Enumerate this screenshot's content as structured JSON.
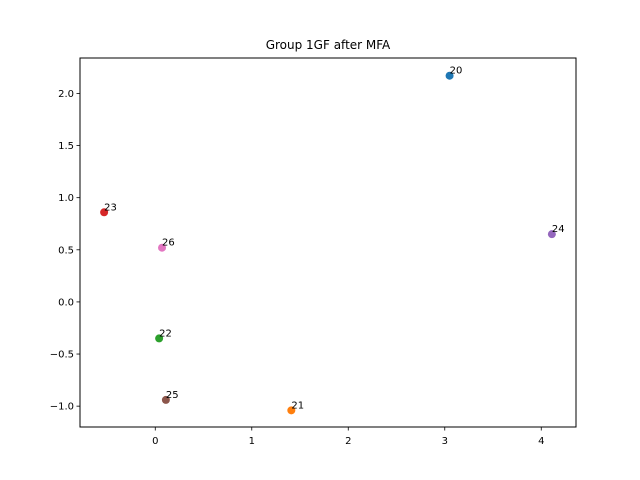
{
  "chart_data": {
    "type": "scatter",
    "title": "Group 1GF after MFA",
    "xlabel": "",
    "ylabel": "",
    "xlim": [
      -0.78,
      4.36
    ],
    "ylim": [
      -1.2,
      2.34
    ],
    "x_ticks": [
      0,
      1,
      2,
      3,
      4
    ],
    "x_tick_labels": [
      "0",
      "1",
      "2",
      "3",
      "4"
    ],
    "y_ticks": [
      -1.0,
      -0.5,
      0.0,
      0.5,
      1.0,
      1.5,
      2.0
    ],
    "y_tick_labels": [
      "−1.0",
      "−0.5",
      "0.0",
      "0.5",
      "1.0",
      "1.5",
      "2.0"
    ],
    "grid": false,
    "points": [
      {
        "label": "20",
        "x": 3.05,
        "y": 2.17,
        "color": "#1f77b4"
      },
      {
        "label": "21",
        "x": 1.41,
        "y": -1.04,
        "color": "#ff7f0e"
      },
      {
        "label": "22",
        "x": 0.04,
        "y": -0.35,
        "color": "#2ca02c"
      },
      {
        "label": "23",
        "x": -0.53,
        "y": 0.86,
        "color": "#d62728"
      },
      {
        "label": "24",
        "x": 4.11,
        "y": 0.65,
        "color": "#9467bd"
      },
      {
        "label": "25",
        "x": 0.11,
        "y": -0.94,
        "color": "#8c564b"
      },
      {
        "label": "26",
        "x": 0.07,
        "y": 0.52,
        "color": "#e377c2"
      }
    ]
  }
}
